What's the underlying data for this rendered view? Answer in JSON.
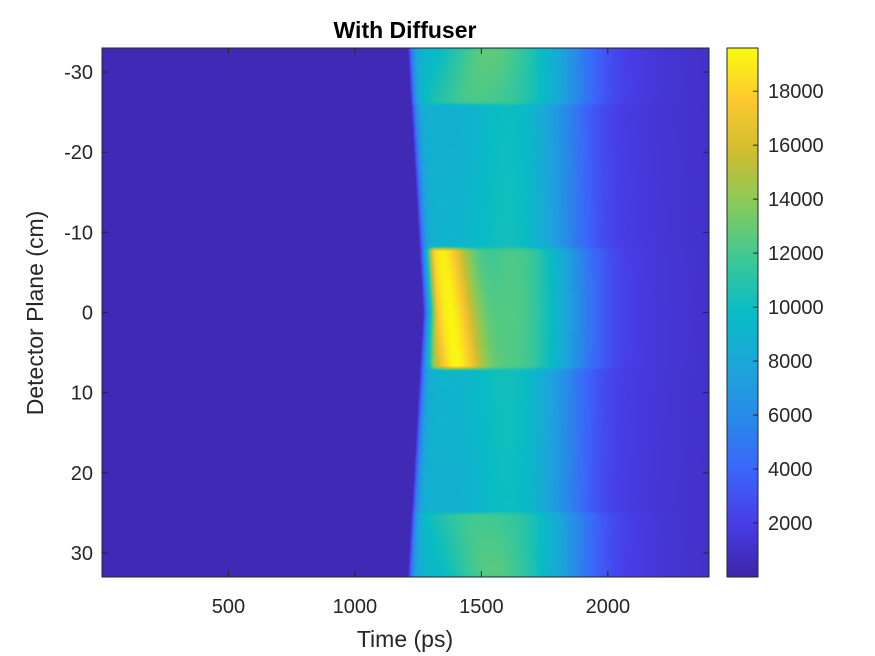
{
  "chart_data": {
    "type": "heatmap",
    "title": "With Diffuser",
    "xlabel": "Time (ps)",
    "ylabel": "Detector Plane (cm)",
    "xlim": [
      0,
      2400
    ],
    "ylim": [
      -33,
      33
    ],
    "y_reversed": true,
    "xticks": [
      500,
      1000,
      1500,
      2000
    ],
    "yticks": [
      -30,
      -20,
      -10,
      0,
      10,
      20,
      30
    ],
    "colorbar": {
      "colormap": "parula",
      "clim": [
        0,
        19600
      ],
      "ticks": [
        2000,
        4000,
        6000,
        8000,
        10000,
        12000,
        14000,
        16000,
        18000
      ]
    },
    "grid": false,
    "structure": {
      "background_level": 400,
      "arrival_front": {
        "time_at_center_ps": 1270,
        "time_at_edges_ps": 1210,
        "pulse_peak_level": 9800,
        "tail_level": 5200
      },
      "bright_center_band": {
        "y_range_cm": [
          -8,
          7
        ],
        "peak_level": 19500,
        "peak_time_ps": 1340
      },
      "edge_bands": [
        {
          "y_range_cm": [
            -33,
            -26
          ],
          "peak_level": 10500
        },
        {
          "y_range_cm": [
            25,
            33
          ],
          "peak_level": 10000
        }
      ]
    }
  }
}
